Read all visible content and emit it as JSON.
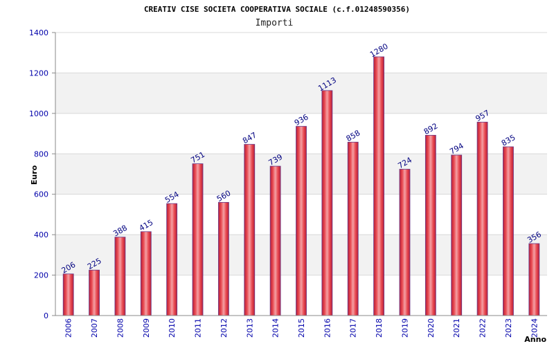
{
  "chart_data": {
    "type": "bar",
    "title": "CREATIV CISE SOCIETA COOPERATIVA SOCIALE (c.f.01248590356)",
    "subtitle": "Importi",
    "xlabel": "Anno",
    "ylabel": "Euro",
    "ylim": [
      0,
      1400
    ],
    "yticks": [
      0,
      200,
      400,
      600,
      800,
      1000,
      1200,
      1400
    ],
    "categories": [
      "2006",
      "2007",
      "2008",
      "2009",
      "2010",
      "2011",
      "2012",
      "2013",
      "2014",
      "2015",
      "2016",
      "2017",
      "2018",
      "2019",
      "2020",
      "2021",
      "2022",
      "2023",
      "2024"
    ],
    "values": [
      206,
      225,
      388,
      415,
      554,
      751,
      560,
      847,
      739,
      936,
      1113,
      858,
      1280,
      724,
      892,
      794,
      957,
      835,
      356
    ],
    "grid": true,
    "bar_color": "#e03c3c",
    "band_color": "#f2f2f2",
    "label_color": "#000080",
    "tick_color": "#0000aa"
  }
}
